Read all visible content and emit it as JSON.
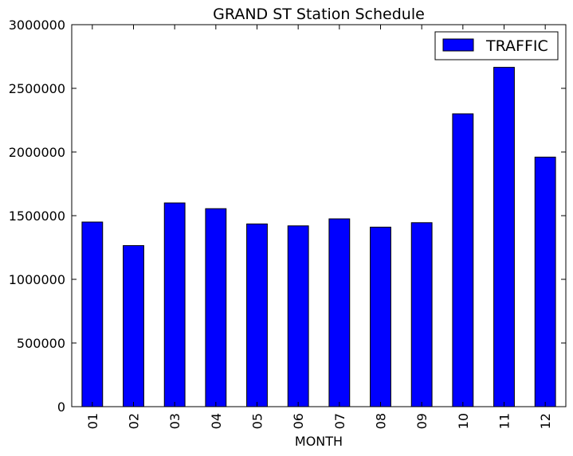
{
  "chart_data": {
    "type": "bar",
    "title": "GRAND ST Station Schedule",
    "xlabel": "MONTH",
    "ylabel": "",
    "categories": [
      "01",
      "02",
      "03",
      "04",
      "05",
      "06",
      "07",
      "08",
      "09",
      "10",
      "11",
      "12"
    ],
    "series": [
      {
        "name": "TRAFFIC",
        "values": [
          1450000,
          1265000,
          1600000,
          1555000,
          1435000,
          1420000,
          1475000,
          1410000,
          1445000,
          2300000,
          2665000,
          1960000
        ]
      }
    ],
    "ylim": [
      0,
      3000000
    ],
    "yticks": [
      "0",
      "500000",
      "1000000",
      "1500000",
      "2000000",
      "2500000",
      "3000000"
    ],
    "bar_color": "#0000ff",
    "grid": false,
    "legend_position": "top-right"
  }
}
